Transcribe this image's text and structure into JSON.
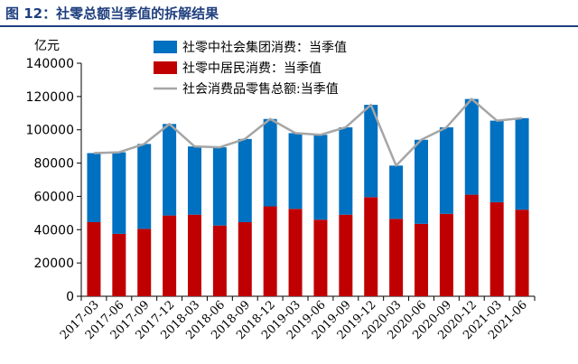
{
  "figure": {
    "title": "图 12：社零总额当季值的拆解结果",
    "title_color": "#1f3f7f"
  },
  "chart_data": {
    "type": "bar",
    "stacked": true,
    "unit_label": "亿元",
    "ylim": [
      0,
      140000
    ],
    "yticks": [
      0,
      20000,
      40000,
      60000,
      80000,
      100000,
      120000,
      140000
    ],
    "grid": false,
    "legend_position": "top-left",
    "categories": [
      "2017-03",
      "2017-06",
      "2017-09",
      "2017-12",
      "2018-03",
      "2018-06",
      "2018-09",
      "2018-12",
      "2019-03",
      "2019-06",
      "2019-09",
      "2019-12",
      "2020-03",
      "2020-06",
      "2020-09",
      "2020-12",
      "2021-03",
      "2021-06"
    ],
    "series": [
      {
        "name": "社零中居民消费：当季值",
        "type": "bar",
        "color": "#c00000",
        "values": [
          44500,
          37500,
          40500,
          48500,
          49000,
          42500,
          44500,
          54000,
          52500,
          46000,
          49000,
          59500,
          46500,
          43500,
          49500,
          61000,
          56500,
          52000
        ]
      },
      {
        "name": "社零中社会集团消费：当季值",
        "type": "bar",
        "color": "#0070c0",
        "values": [
          41500,
          49000,
          51000,
          55000,
          41000,
          47000,
          50000,
          52500,
          45500,
          51000,
          52500,
          55500,
          32000,
          50500,
          52000,
          57500,
          49000,
          55000
        ]
      },
      {
        "name": "社会消费品零售总额:当季值",
        "type": "line",
        "color": "#a6a6a6",
        "values": [
          86000,
          86500,
          91500,
          103500,
          90000,
          89500,
          94500,
          106500,
          98000,
          97000,
          101500,
          115000,
          78500,
          94000,
          101500,
          118500,
          105500,
          107000
        ]
      }
    ]
  }
}
